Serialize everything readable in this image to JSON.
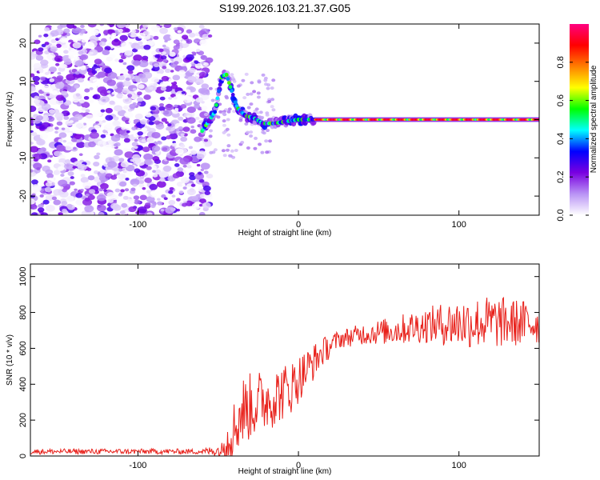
{
  "figure": {
    "title": "S199.2026.103.21.37.G05"
  },
  "chart_data": [
    {
      "type": "heatmap",
      "name": "spectrogram",
      "xlabel": "Height of straight line (km)",
      "ylabel": "Frequency (Hz)",
      "xlim": [
        -167,
        150
      ],
      "ylim": [
        -25,
        25
      ],
      "xticks": [
        -100,
        0,
        100
      ],
      "xtick_labels": [
        "-100",
        "0",
        "100"
      ],
      "yticks": [
        -20,
        -10,
        0,
        10,
        20
      ],
      "ytick_labels": [
        "-20",
        "-10",
        "0",
        "10",
        "20"
      ],
      "signal_track": {
        "description_points_x": [
          -60,
          -52,
          -48,
          -45,
          -42,
          -38,
          -33,
          -28,
          -22,
          -15,
          -8,
          0,
          10,
          20,
          50,
          100,
          150
        ],
        "frequency_hz": [
          -3,
          2,
          11,
          12,
          8,
          3,
          1,
          0.5,
          -1,
          -1,
          -0.5,
          0,
          0,
          0,
          0,
          0,
          0
        ]
      },
      "noise_region_x": [
        -167,
        -55
      ],
      "colorbar": {
        "label": "Normalized spectral amplitude",
        "range": [
          0,
          1
        ],
        "ticks": [
          0.0,
          0.2,
          0.4,
          0.6,
          0.8
        ],
        "tick_labels": [
          "0.0",
          "0.2",
          "0.4",
          "0.6",
          "0.8"
        ],
        "colors": [
          "#ffffff",
          "#b993f5",
          "#7a00e0",
          "#0000ff",
          "#00ffff",
          "#00ff00",
          "#ffff00",
          "#ff7f00",
          "#ff0000",
          "#ff0080"
        ]
      }
    },
    {
      "type": "line",
      "name": "snr",
      "xlabel": "Height of straight line (km)",
      "ylabel": "SNR (10 * v/v)",
      "xlim": [
        -167,
        150
      ],
      "ylim": [
        0,
        1070
      ],
      "xticks": [
        -100,
        0,
        100
      ],
      "xtick_labels": [
        "-100",
        "0",
        "100"
      ],
      "yticks": [
        0,
        200,
        400,
        600,
        800,
        1000
      ],
      "ytick_labels": [
        "0",
        "200",
        "400",
        "600",
        "800",
        "1000"
      ],
      "series": [
        {
          "name": "SNR",
          "color": "#e8201a",
          "envelope_x": [
            -167,
            -60,
            -48,
            -42,
            -35,
            -25,
            -15,
            -5,
            5,
            15,
            25,
            40,
            60,
            80,
            100,
            120,
            150
          ],
          "envelope_mean": [
            25,
            25,
            30,
            120,
            250,
            300,
            330,
            380,
            480,
            580,
            650,
            680,
            700,
            730,
            740,
            745,
            740
          ],
          "envelope_spread": [
            15,
            15,
            40,
            150,
            200,
            180,
            170,
            150,
            120,
            80,
            50,
            60,
            80,
            100,
            140,
            150,
            120
          ]
        }
      ]
    }
  ]
}
